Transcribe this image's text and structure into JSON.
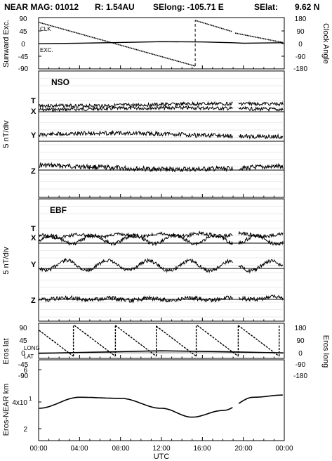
{
  "header": {
    "title": "NEAR MAG: 01012",
    "radius": "R: 1.54AU",
    "selong": "SElong: -105.71 E",
    "selat": "SElat:",
    "selat_value": "9.62 N"
  },
  "chart_data": [
    {
      "type": "line",
      "panel": "sunward_clock",
      "ylabel_left": "Sunward Exc.",
      "ylabel_right": "Clock Angle",
      "yticks_left": [
        "90",
        "45",
        "0",
        "-45",
        "-90"
      ],
      "yticks_right": [
        "180",
        "90",
        "0",
        "-90",
        "-180"
      ],
      "series": [
        {
          "name": "CLK",
          "x": [
            0,
            15.3,
            15.3,
            18.9,
            19.2,
            23.9
          ],
          "y": [
            165,
            -180,
            180,
            92,
            80,
            5
          ]
        },
        {
          "name": "EXC.",
          "x": [
            0,
            4,
            8,
            12,
            16,
            19,
            20,
            23.9
          ],
          "y": [
            -2,
            0,
            3,
            6,
            5,
            2,
            0,
            2
          ]
        }
      ]
    },
    {
      "type": "line",
      "panel": "nso",
      "title": "NSO",
      "ylabel": "5 nT/div",
      "traces": [
        "T",
        "X",
        "Y",
        "Z"
      ]
    },
    {
      "type": "line",
      "panel": "ebf",
      "title": "EBF",
      "ylabel": "5 nT/div",
      "traces": [
        "T",
        "X",
        "Y",
        "Z"
      ]
    },
    {
      "type": "line",
      "panel": "eros",
      "ylabel_left": "Eros lat",
      "ylabel_right": "Eros long",
      "yticks_left": [
        "90",
        "45",
        "0",
        "-45",
        "-90"
      ],
      "yticks_right": [
        "180",
        "90",
        "0",
        "-90",
        "-180"
      ],
      "series": [
        {
          "name": "LONG",
          "sawtooth_wraps": [
            3.4,
            7.5,
            11.5,
            15.4,
            19.5,
            23.5
          ]
        },
        {
          "name": "LAT",
          "x": [
            0,
            6,
            12,
            18,
            23.9
          ],
          "y": [
            -3,
            0,
            3,
            1,
            -2
          ]
        }
      ]
    },
    {
      "type": "line",
      "panel": "distance",
      "ylabel": "Eros-NEAR km",
      "yticks": [
        "6",
        "4x10",
        "2"
      ],
      "exponent": "1",
      "series": [
        {
          "name": "distance",
          "x": [
            0,
            4,
            8,
            12,
            15,
            18,
            21,
            23.9
          ],
          "y": [
            28,
            38,
            37,
            28,
            20,
            26,
            38,
            40
          ]
        }
      ]
    }
  ],
  "xaxis": {
    "label": "UTC",
    "ticks": [
      "00:00",
      "04:00",
      "08:00",
      "12:00",
      "16:00",
      "20:00",
      "00:00"
    ]
  }
}
